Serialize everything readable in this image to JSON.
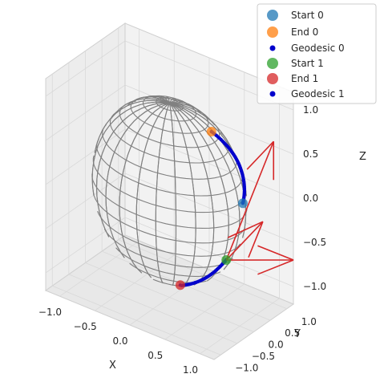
{
  "chart_data": {
    "type": "scatter",
    "projection": "3d",
    "surface": "unit-sphere-wireframe",
    "xlabel": "X",
    "ylabel": "Y",
    "zlabel": "Z",
    "xlim": [
      -1.2,
      1.2
    ],
    "ylim": [
      -1.2,
      1.2
    ],
    "zlim": [
      -1.2,
      1.2
    ],
    "x_ticks": [
      "−1.0",
      "−0.5",
      "0.0",
      "0.5",
      "1.0"
    ],
    "y_ticks": [
      "−1.0",
      "−0.5",
      "0.0",
      "0.5",
      "1.0"
    ],
    "z_ticks": [
      "−1.0",
      "−0.5",
      "0.0",
      "0.5",
      "1.0"
    ],
    "grid": true,
    "legend_position": "top-right",
    "legend": [
      {
        "label": "Start 0",
        "marker": "large-dot",
        "color": "#1f77b4"
      },
      {
        "label": "End 0",
        "marker": "large-dot",
        "color": "#ff7f0e"
      },
      {
        "label": "Geodesic 0",
        "marker": "small-dot",
        "color": "#0000cc"
      },
      {
        "label": "Start 1",
        "marker": "large-dot",
        "color": "#2ca02c"
      },
      {
        "label": "End 1",
        "marker": "large-dot",
        "color": "#d62728"
      },
      {
        "label": "Geodesic 1",
        "marker": "small-dot",
        "color": "#0000cc"
      }
    ],
    "series": [
      {
        "name": "Start 0",
        "points": [
          [
            0.72,
            0.69,
            -0.08
          ]
        ]
      },
      {
        "name": "End 0",
        "points": [
          [
            0.55,
            0.1,
            0.83
          ]
        ]
      },
      {
        "name": "Geodesic 0",
        "points": [
          [
            0.72,
            0.69,
            -0.08
          ],
          [
            0.75,
            0.62,
            0.08
          ],
          [
            0.75,
            0.53,
            0.25
          ],
          [
            0.74,
            0.45,
            0.41
          ],
          [
            0.71,
            0.34,
            0.56
          ],
          [
            0.66,
            0.23,
            0.7
          ],
          [
            0.55,
            0.1,
            0.83
          ]
        ]
      },
      {
        "name": "Start 1",
        "points": [
          [
            0.62,
            0.4,
            -0.68
          ]
        ]
      },
      {
        "name": "End 1",
        "points": [
          [
            0.2,
            -0.1,
            -0.97
          ]
        ]
      },
      {
        "name": "Geodesic 1",
        "points": [
          [
            0.62,
            0.4,
            -0.68
          ],
          [
            0.53,
            0.3,
            -0.79
          ],
          [
            0.42,
            0.16,
            -0.89
          ],
          [
            0.3,
            0.02,
            -0.95
          ],
          [
            0.2,
            -0.1,
            -0.97
          ]
        ]
      }
    ],
    "arrows": {
      "color": "#d62728",
      "vectors": [
        {
          "from": [
            0.62,
            0.4,
            -0.68
          ],
          "to": [
            1.2,
            0.6,
            0.8
          ]
        },
        {
          "from": [
            0.62,
            0.4,
            -0.68
          ],
          "to": [
            1.2,
            1.2,
            -0.7
          ]
        },
        {
          "from": [
            0.62,
            0.4,
            -0.68
          ],
          "to": [
            1.0,
            0.7,
            -0.2
          ]
        }
      ]
    },
    "colors": {
      "sphere": "#808080",
      "pane": "#f2f2f2",
      "grid": "#d9d9d9",
      "geodesic": "#0000cc"
    }
  }
}
